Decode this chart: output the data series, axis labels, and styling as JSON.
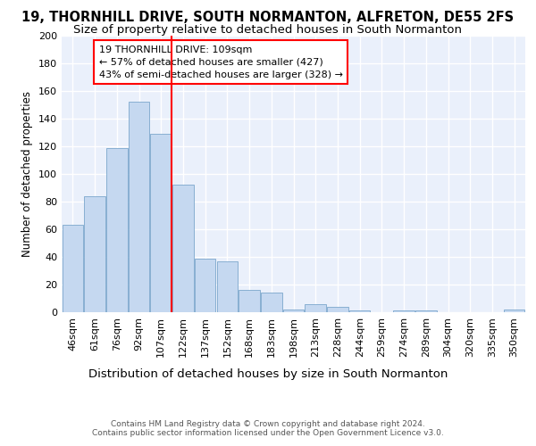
{
  "title1": "19, THORNHILL DRIVE, SOUTH NORMANTON, ALFRETON, DE55 2FS",
  "title2": "Size of property relative to detached houses in South Normanton",
  "xlabel": "Distribution of detached houses by size in South Normanton",
  "ylabel": "Number of detached properties",
  "footer": "Contains HM Land Registry data © Crown copyright and database right 2024.\nContains public sector information licensed under the Open Government Licence v3.0.",
  "categories": [
    "46sqm",
    "61sqm",
    "76sqm",
    "92sqm",
    "107sqm",
    "122sqm",
    "137sqm",
    "152sqm",
    "168sqm",
    "183sqm",
    "198sqm",
    "213sqm",
    "228sqm",
    "244sqm",
    "259sqm",
    "274sqm",
    "289sqm",
    "304sqm",
    "320sqm",
    "335sqm",
    "350sqm"
  ],
  "values": [
    63,
    84,
    119,
    152,
    129,
    92,
    39,
    37,
    16,
    14,
    2,
    6,
    4,
    1,
    0,
    1,
    1,
    0,
    0,
    0,
    2
  ],
  "bar_color": "#c5d8f0",
  "bar_edge_color": "#7ba7cc",
  "highlight_bar_index": 4,
  "annotation_title": "19 THORNHILL DRIVE: 109sqm",
  "annotation_line1": "← 57% of detached houses are smaller (427)",
  "annotation_line2": "43% of semi-detached houses are larger (328) →",
  "ylim": [
    0,
    200
  ],
  "background_color": "#eaf0fb",
  "grid_color": "#ffffff",
  "title1_fontsize": 10.5,
  "title2_fontsize": 9.5,
  "xlabel_fontsize": 9.5,
  "ylabel_fontsize": 8.5,
  "tick_fontsize": 8,
  "annotation_fontsize": 8,
  "footer_fontsize": 6.5
}
